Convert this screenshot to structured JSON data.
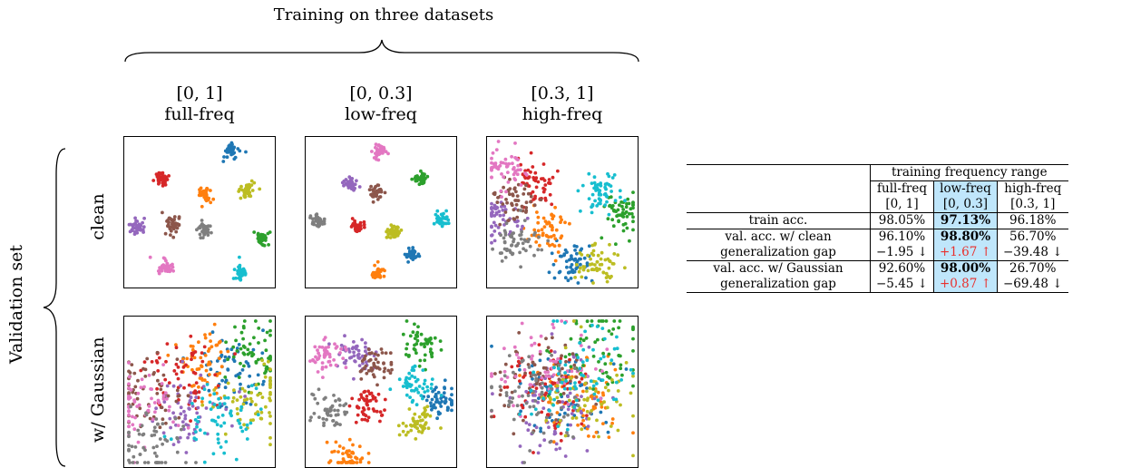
{
  "figure": {
    "title": "Training on three datasets",
    "validation_label": "Validation set",
    "columns": [
      {
        "range": "[0, 1]",
        "name": "full-freq"
      },
      {
        "range": "[0, 0.3]",
        "name": "low-freq"
      },
      {
        "range": "[0.3, 1]",
        "name": "high-freq"
      }
    ],
    "rows": [
      {
        "name": "clean"
      },
      {
        "name": "w/ Gaussian"
      }
    ],
    "cluster_colors": [
      "#1f77b4",
      "#ff7f0e",
      "#2ca02c",
      "#d62728",
      "#9467bd",
      "#8c564b",
      "#e377c2",
      "#7f7f7f",
      "#bcbd22",
      "#17becf"
    ]
  },
  "table": {
    "group_header": "training frequency range",
    "columns": [
      {
        "name": "full-freq",
        "range": "[0, 1]"
      },
      {
        "name": "low-freq",
        "range": "[0, 0.3]"
      },
      {
        "name": "high-freq",
        "range": "[0.3, 1]"
      }
    ],
    "rows": [
      {
        "label": "train acc.",
        "values": [
          "98.05%",
          "97.13%",
          "96.18%"
        ]
      },
      {
        "label": "val. acc. w/ clean",
        "values": [
          "96.10%",
          "98.80%",
          "56.70%"
        ]
      },
      {
        "label": "generalization gap",
        "values": [
          "−1.95 ↓",
          "+1.67 ↑",
          "−39.48 ↓"
        ]
      },
      {
        "label": "val. acc. w/ Gaussian",
        "values": [
          "92.60%",
          "98.00%",
          "26.70%"
        ]
      },
      {
        "label": "generalization gap",
        "values": [
          "−5.45 ↓",
          "+0.87 ↑",
          "−69.48 ↓"
        ]
      }
    ]
  }
}
